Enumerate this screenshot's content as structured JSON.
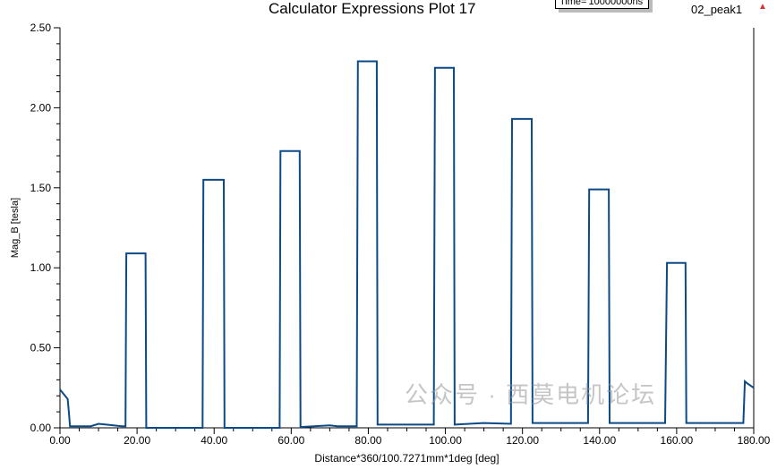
{
  "chart_data": {
    "type": "line",
    "title": "Calculator Expressions Plot 17",
    "xlabel": "Distance*360/100.7271mm*1deg [deg]",
    "ylabel": "Mag_B [tesla]",
    "xlim": [
      0,
      180
    ],
    "ylim": [
      0,
      2.5
    ],
    "xticks": [
      "0.00",
      "20.00",
      "40.00",
      "60.00",
      "80.00",
      "100.00",
      "120.00",
      "140.00",
      "160.00",
      "180.00"
    ],
    "yticks": [
      "0.00",
      "0.50",
      "1.00",
      "1.50",
      "2.00",
      "2.50"
    ],
    "grid": false,
    "legend": "top-right",
    "annotation": "Time='10000000ns'",
    "series": [
      {
        "name": "02_peak1",
        "color": "#0b4a87",
        "x": [
          0,
          1,
          2,
          2.3,
          2.6,
          8,
          10,
          12,
          16,
          17,
          17.2,
          22.2,
          22.4,
          37,
          37.2,
          42.5,
          42.7,
          57,
          57.2,
          62.2,
          62.4,
          70,
          72,
          77,
          77.3,
          82.2,
          82.4,
          97,
          97.3,
          102.2,
          102.4,
          110,
          117,
          117.3,
          122.4,
          122.6,
          137,
          137.3,
          142.4,
          142.6,
          157,
          157.5,
          162.3,
          162.5,
          170,
          177.3,
          177.7,
          178.2,
          180
        ],
        "y": [
          0.24,
          0.21,
          0.18,
          0.1,
          0.01,
          0.01,
          0.025,
          0.02,
          0.01,
          0.01,
          1.09,
          1.09,
          0,
          0,
          1.55,
          1.55,
          0,
          0,
          1.73,
          1.73,
          0.005,
          0.015,
          0.01,
          0.01,
          2.29,
          2.29,
          0.02,
          0.02,
          2.25,
          2.25,
          0.02,
          0.03,
          0.025,
          1.93,
          1.93,
          0.03,
          0.03,
          1.49,
          1.49,
          0.03,
          0.03,
          1.03,
          1.03,
          0.03,
          0.03,
          0.03,
          0.29,
          0.28,
          0.25
        ]
      }
    ]
  },
  "legend_label": "02_peak1",
  "legend_icon": "red-triangle-icon",
  "watermark": "公众号 · 西莫电机论坛"
}
